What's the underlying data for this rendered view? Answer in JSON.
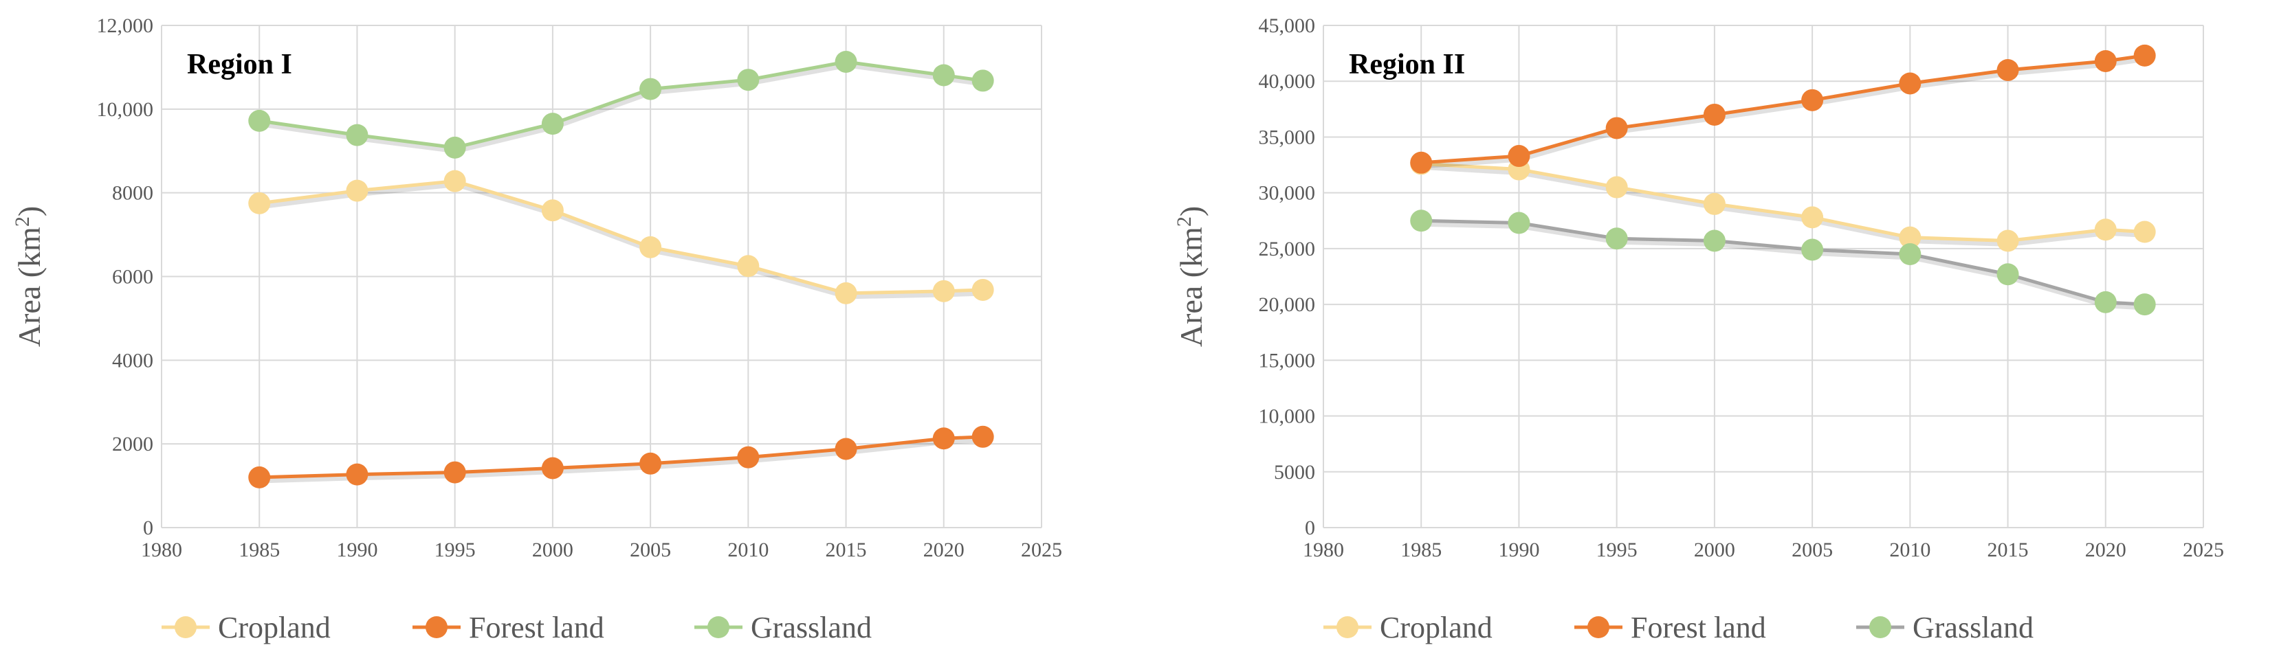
{
  "chart_data": [
    {
      "type": "line",
      "title": "Region I",
      "ylabel": "Area (km",
      "ylabel_sup": "2",
      "ylabel_close": ")",
      "x": [
        1985,
        1990,
        1995,
        2000,
        2005,
        2010,
        2015,
        2020,
        2022
      ],
      "xlim": [
        1980,
        2025
      ],
      "xticks": [
        1980,
        1985,
        1990,
        1995,
        2000,
        2005,
        2010,
        2015,
        2020,
        2025
      ],
      "ylim": [
        0,
        12000
      ],
      "yticks": [
        0,
        2000,
        4000,
        6000,
        8000,
        10000,
        12000
      ],
      "ytick_labels": [
        "0",
        "2000",
        "4000",
        "6000",
        "8000",
        "10,000",
        "12,000"
      ],
      "grid": true,
      "legend_position": "bottom",
      "series": [
        {
          "name": "Cropland",
          "color": "#F9DA94",
          "line_color": "#F9DA94",
          "values": [
            7750,
            8050,
            8280,
            7580,
            6700,
            6250,
            5600,
            5650,
            5680
          ]
        },
        {
          "name": "Forest land",
          "color": "#ED7D31",
          "line_color": "#ED7D31",
          "values": [
            1200,
            1270,
            1320,
            1420,
            1530,
            1680,
            1880,
            2130,
            2170
          ]
        },
        {
          "name": "Grassland",
          "color": "#A9D18E",
          "line_color": "#A9D18E",
          "values": [
            9720,
            9380,
            9080,
            9650,
            10480,
            10700,
            11130,
            10810,
            10680
          ]
        }
      ]
    },
    {
      "type": "line",
      "title": "Region II",
      "ylabel": "Area (km",
      "ylabel_sup": "2",
      "ylabel_close": ")",
      "x": [
        1985,
        1990,
        1995,
        2000,
        2005,
        2010,
        2015,
        2020,
        2022
      ],
      "xlim": [
        1980,
        2025
      ],
      "xticks": [
        1980,
        1985,
        1990,
        1995,
        2000,
        2005,
        2010,
        2015,
        2020,
        2025
      ],
      "ylim": [
        0,
        45000
      ],
      "yticks": [
        0,
        5000,
        10000,
        15000,
        20000,
        25000,
        30000,
        35000,
        40000,
        45000
      ],
      "ytick_labels": [
        "0",
        "5000",
        "10,000",
        "15,000",
        "20,000",
        "25,000",
        "30,000",
        "35,000",
        "40,000",
        "45,000"
      ],
      "grid": true,
      "legend_position": "bottom",
      "series": [
        {
          "name": "Cropland",
          "color": "#F9DA94",
          "line_color": "#F9DA94",
          "values": [
            32600,
            32100,
            30500,
            29000,
            27800,
            26000,
            25700,
            26700,
            26500
          ]
        },
        {
          "name": "Forest land",
          "color": "#ED7D31",
          "line_color": "#ED7D31",
          "values": [
            32700,
            33300,
            35800,
            37000,
            38300,
            39800,
            41000,
            41800,
            42300
          ]
        },
        {
          "name": "Grassland",
          "color": "#A9D18E",
          "line_color": "#A5A5A5",
          "values": [
            27500,
            27300,
            25900,
            25700,
            24900,
            24500,
            22700,
            20200,
            20000
          ]
        }
      ]
    }
  ]
}
